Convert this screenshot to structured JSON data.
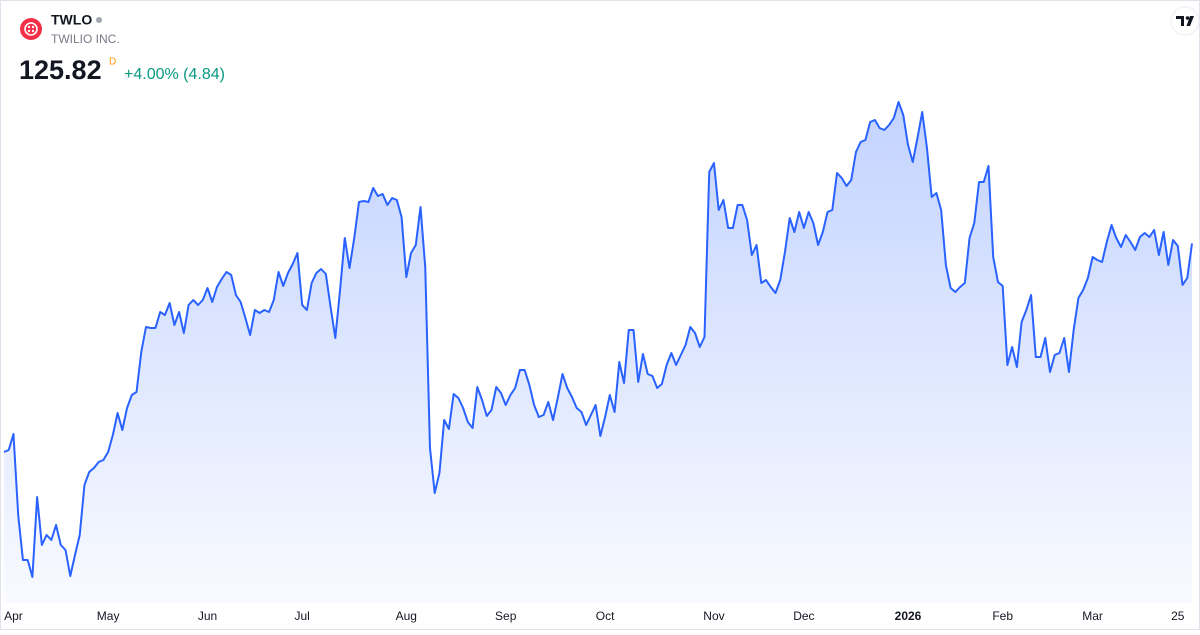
{
  "header": {
    "symbol": "TWLO",
    "company": "TWILIO INC.",
    "price": "125.82",
    "interval": "D",
    "change": "+4.00% (4.84)"
  },
  "chart_data": {
    "type": "area",
    "color": "#2962ff",
    "ylim": [
      81.25,
      145
    ],
    "categories": [
      null,
      null,
      "Apr",
      null,
      null,
      null,
      null,
      null,
      null,
      null,
      null,
      null,
      null,
      null,
      null,
      null,
      null,
      null,
      null,
      null,
      null,
      null,
      "May",
      null,
      null,
      null,
      null,
      null,
      null,
      null,
      null,
      null,
      null,
      null,
      null,
      null,
      null,
      null,
      null,
      null,
      null,
      null,
      null,
      "Jun",
      null,
      null,
      null,
      null,
      null,
      null,
      null,
      null,
      null,
      null,
      null,
      null,
      null,
      null,
      null,
      null,
      null,
      null,
      null,
      "Jul",
      null,
      null,
      null,
      null,
      null,
      null,
      null,
      null,
      null,
      null,
      null,
      null,
      null,
      null,
      null,
      null,
      null,
      null,
      null,
      null,
      null,
      "Aug",
      null,
      null,
      null,
      null,
      null,
      null,
      null,
      null,
      null,
      null,
      null,
      null,
      null,
      null,
      null,
      null,
      null,
      null,
      null,
      null,
      "Sep",
      null,
      null,
      null,
      null,
      null,
      null,
      null,
      null,
      null,
      null,
      null,
      null,
      null,
      null,
      null,
      null,
      null,
      null,
      null,
      null,
      "Oct",
      null,
      null,
      null,
      null,
      null,
      null,
      null,
      null,
      null,
      null,
      null,
      null,
      null,
      null,
      null,
      null,
      null,
      null,
      null,
      null,
      null,
      null,
      "Nov",
      null,
      null,
      null,
      null,
      null,
      null,
      null,
      null,
      null,
      null,
      null,
      null,
      null,
      null,
      null,
      null,
      null,
      null,
      "Dec",
      null,
      null,
      null,
      null,
      null,
      null,
      null,
      null,
      null,
      null,
      null,
      null,
      null,
      null,
      null,
      null,
      null,
      null,
      null,
      null,
      null,
      "2026",
      null,
      null,
      null,
      null,
      null,
      null,
      null,
      null,
      null,
      null,
      null,
      null,
      null,
      null,
      null,
      null,
      null,
      null,
      null,
      "Feb",
      null,
      null,
      null,
      null,
      null,
      null,
      null,
      null,
      null,
      null,
      null,
      null,
      null,
      null,
      null,
      null,
      null,
      null,
      "Mar",
      null,
      null,
      null,
      null,
      null,
      null,
      null,
      null,
      null,
      null,
      null,
      null,
      null,
      null,
      null,
      null,
      null,
      "25",
      null,
      null,
      null
    ],
    "values": [
      99.75,
      100,
      102,
      91.875,
      86.25,
      86.25,
      84.125,
      94.125,
      88.125,
      89.375,
      88.75,
      90.625,
      88.125,
      87.5,
      84.25,
      86.875,
      89.375,
      95.625,
      97.25,
      97.75,
      98.5,
      98.75,
      99.75,
      101.875,
      104.625,
      102.5,
      105.25,
      106.875,
      107.25,
      112.25,
      115.375,
      115.25,
      115.25,
      117.25,
      116.875,
      118.375,
      115.625,
      117.25,
      114.625,
      118.125,
      118.75,
      118.125,
      118.75,
      120.25,
      118.5,
      120.375,
      121.375,
      122.25,
      121.875,
      119.375,
      118.5,
      116.5,
      114.375,
      117.5,
      117.125,
      117.5,
      117.25,
      118.75,
      122.25,
      120.5,
      122.125,
      123.25,
      124.625,
      118.125,
      117.5,
      120.875,
      122.125,
      122.625,
      122,
      117.875,
      114,
      120,
      126.5,
      122.75,
      126.5,
      131,
      131.125,
      131,
      132.75,
      131.75,
      132,
      130.625,
      131.5,
      131.25,
      129.125,
      121.625,
      124.625,
      125.625,
      130.375,
      122.875,
      100.25,
      94.625,
      97.125,
      103.75,
      102.625,
      107,
      106.5,
      105.25,
      103.5,
      102.75,
      107.875,
      106.25,
      104.25,
      105,
      107.875,
      107.125,
      105.625,
      106.875,
      107.75,
      110,
      110,
      108.125,
      105.625,
      104.125,
      104.375,
      106,
      103.75,
      106.5,
      109.5,
      107.75,
      106.625,
      105.25,
      104.75,
      103.125,
      104.375,
      105.625,
      101.75,
      104.125,
      106.875,
      104.75,
      111,
      108.375,
      115,
      115,
      108.5,
      112,
      109.5,
      109.25,
      107.75,
      108.25,
      110.625,
      112.125,
      110.625,
      111.875,
      113.125,
      115.375,
      114.625,
      112.875,
      114.125,
      134.75,
      135.875,
      130,
      131.25,
      127.75,
      127.75,
      130.625,
      130.625,
      128.75,
      124.375,
      125.625,
      120.875,
      121.25,
      120.375,
      119.625,
      121.25,
      124.75,
      129,
      127.25,
      129.75,
      127.75,
      129.75,
      128.375,
      125.625,
      127.25,
      129.75,
      130,
      134.625,
      134,
      133,
      133.75,
      137.25,
      138.5,
      138.75,
      141,
      141.25,
      140.25,
      140,
      140.625,
      141.5,
      143.5,
      141.875,
      138.125,
      136,
      139,
      142.25,
      137.75,
      131.625,
      132.125,
      130,
      123.125,
      120.25,
      119.75,
      120.375,
      120.875,
      126.5,
      128.375,
      133.5,
      133.5,
      135.5,
      124.125,
      121,
      120.5,
      110.625,
      112.875,
      110.375,
      116,
      117.5,
      119.375,
      111.625,
      111.625,
      114,
      109.75,
      111.875,
      112.125,
      114,
      109.75,
      115,
      119,
      120,
      121.5,
      124.125,
      123.75,
      123.5,
      126,
      128.125,
      126.5,
      125.375,
      126.875,
      126,
      125,
      126.625,
      127.125,
      126.625,
      127.5,
      124.375,
      127.25,
      123.125,
      126.25,
      125.5,
      120.625,
      121.5,
      125.82
    ]
  }
}
